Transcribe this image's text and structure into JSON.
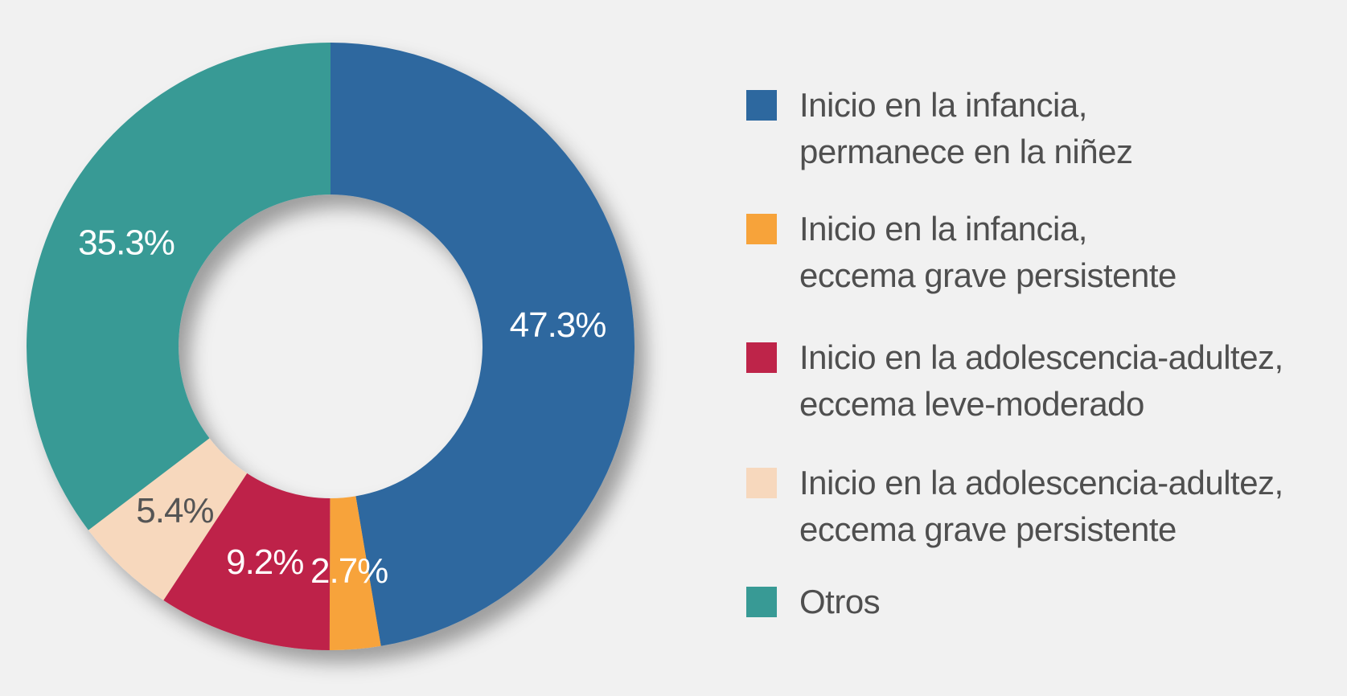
{
  "chart_data": {
    "type": "pie",
    "variant": "donut",
    "slices": [
      {
        "label_line1": "Inicio en la infancia,",
        "label_line2": "permanece en la niñez",
        "value": 47.3,
        "display": "47.3%",
        "color": "#2d689f",
        "text_color": "#ffffff"
      },
      {
        "label_line1": "Inicio en la infancia,",
        "label_line2": "eccema grave persistente",
        "value": 2.7,
        "display": "2.7%",
        "color": "#f7a33a",
        "text_color": "#ffffff"
      },
      {
        "label_line1": "Inicio en la adolescencia-adultez,",
        "label_line2": "eccema leve-moderado",
        "value": 9.2,
        "display": "9.2%",
        "color": "#be2449",
        "text_color": "#ffffff"
      },
      {
        "label_line1": "Inicio en la adolescencia-adultez,",
        "label_line2": "eccema grave persistente",
        "value": 5.4,
        "display": "5.4%",
        "color": "#f7d8bd",
        "text_color": "#555555"
      },
      {
        "label_line1": "Otros",
        "label_line2": "",
        "value": 35.3,
        "display": "35.3%",
        "color": "#389a95",
        "text_color": "#ffffff"
      }
    ],
    "start_angle": "top",
    "direction": "clockwise",
    "legend_position": "right"
  }
}
